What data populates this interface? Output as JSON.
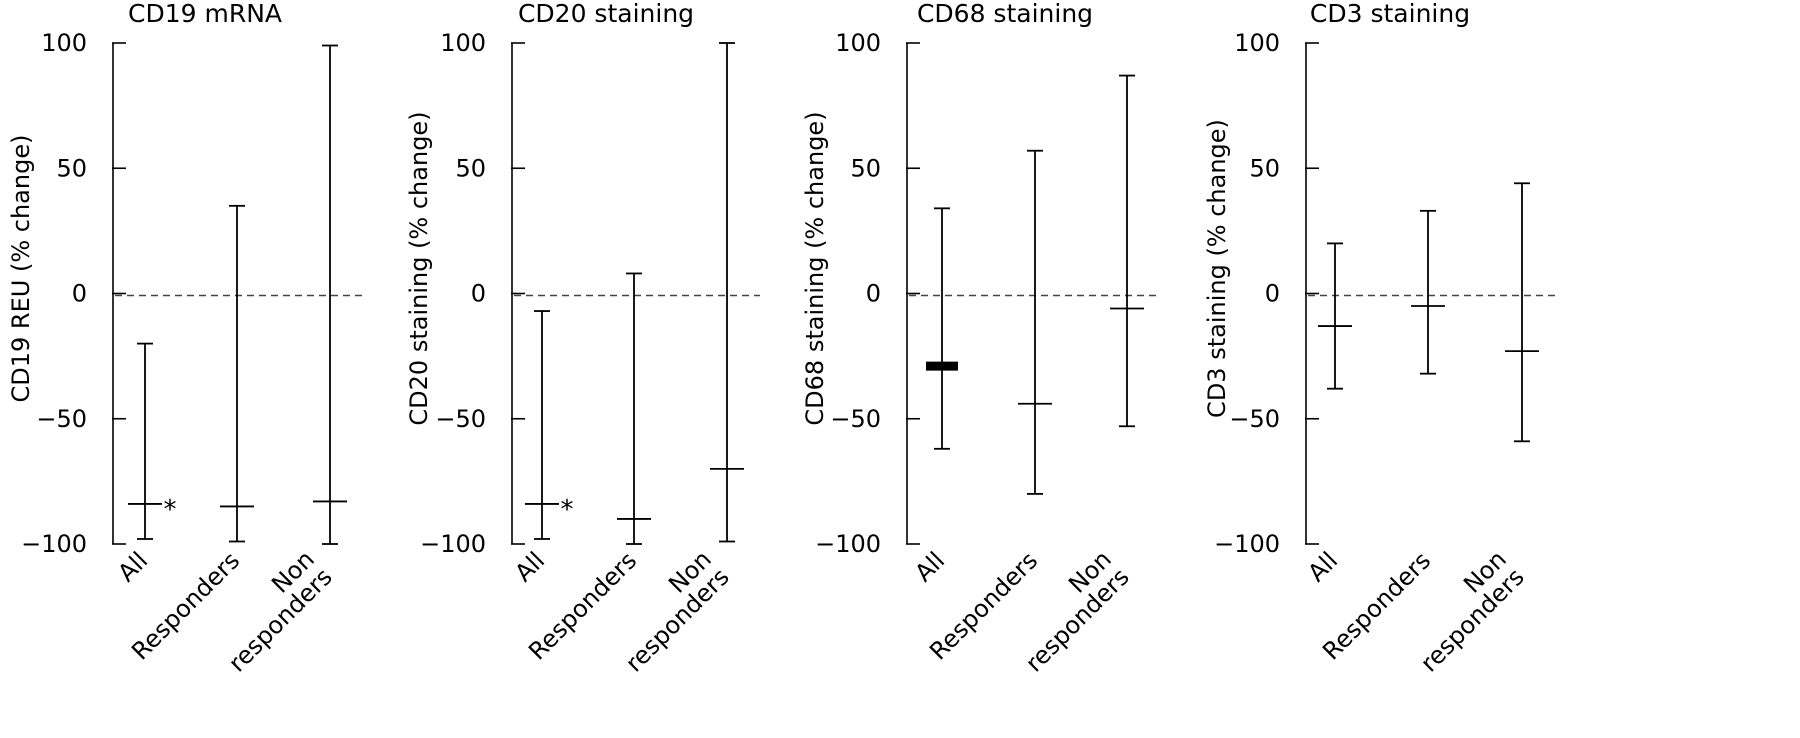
{
  "chart_data": [
    {
      "type": "error-bar",
      "title": "CD19 mRNA",
      "ylabel": "CD19 REU (% change)",
      "ylim": [
        -100,
        100
      ],
      "yticks": [
        "100",
        "50",
        "0",
        "−50",
        "−100"
      ],
      "reference_line": 0,
      "categories": [
        "All",
        "Responders",
        "Non responders"
      ],
      "category_labels": [
        [
          "All"
        ],
        [
          "Responders"
        ],
        [
          "Non",
          "responders"
        ]
      ],
      "median": [
        -84,
        -85,
        -83
      ],
      "low": [
        -98,
        -99,
        -100
      ],
      "high": [
        -20,
        35,
        99
      ],
      "annotations": [
        {
          "category": "All",
          "text": "*"
        }
      ]
    },
    {
      "type": "error-bar",
      "title": "CD20 staining",
      "ylabel": "CD20 staining (% change)",
      "ylim": [
        -100,
        100
      ],
      "yticks": [
        "100",
        "50",
        "0",
        "−50",
        "−100"
      ],
      "reference_line": 0,
      "categories": [
        "All",
        "Responders",
        "Non responders"
      ],
      "category_labels": [
        [
          "All"
        ],
        [
          "Responders"
        ],
        [
          "Non",
          "responders"
        ]
      ],
      "median": [
        -84,
        -90,
        -70
      ],
      "low": [
        -98,
        -100,
        -99
      ],
      "high": [
        -7,
        8,
        100
      ],
      "annotations": [
        {
          "category": "All",
          "text": "*"
        }
      ]
    },
    {
      "type": "error-bar",
      "title": "CD68 staining",
      "ylabel": "CD68 staining (% change)",
      "ylim": [
        -100,
        100
      ],
      "yticks": [
        "100",
        "50",
        "0",
        "−50",
        "−100"
      ],
      "reference_line": 0,
      "categories": [
        "All",
        "Responders",
        "Non responders"
      ],
      "category_labels": [
        [
          "All"
        ],
        [
          "Responders"
        ],
        [
          "Non",
          "responders"
        ]
      ],
      "median": [
        -29,
        -44,
        -6
      ],
      "low": [
        -62,
        -80,
        -53
      ],
      "high": [
        34,
        57,
        87
      ],
      "annotations": []
    },
    {
      "type": "error-bar",
      "title": "CD3 staining",
      "ylabel": "CD3 staining (% change)",
      "ylim": [
        -100,
        100
      ],
      "yticks": [
        "100",
        "50",
        "0",
        "−50",
        "−100"
      ],
      "reference_line": 0,
      "categories": [
        "All",
        "Responders",
        "Non responders"
      ],
      "category_labels": [
        [
          "All"
        ],
        [
          "Responders"
        ],
        [
          "Non",
          "responders"
        ]
      ],
      "median": [
        -13,
        -5,
        -23
      ],
      "low": [
        -38,
        -32,
        -59
      ],
      "high": [
        20,
        33,
        44
      ],
      "annotations": []
    }
  ]
}
